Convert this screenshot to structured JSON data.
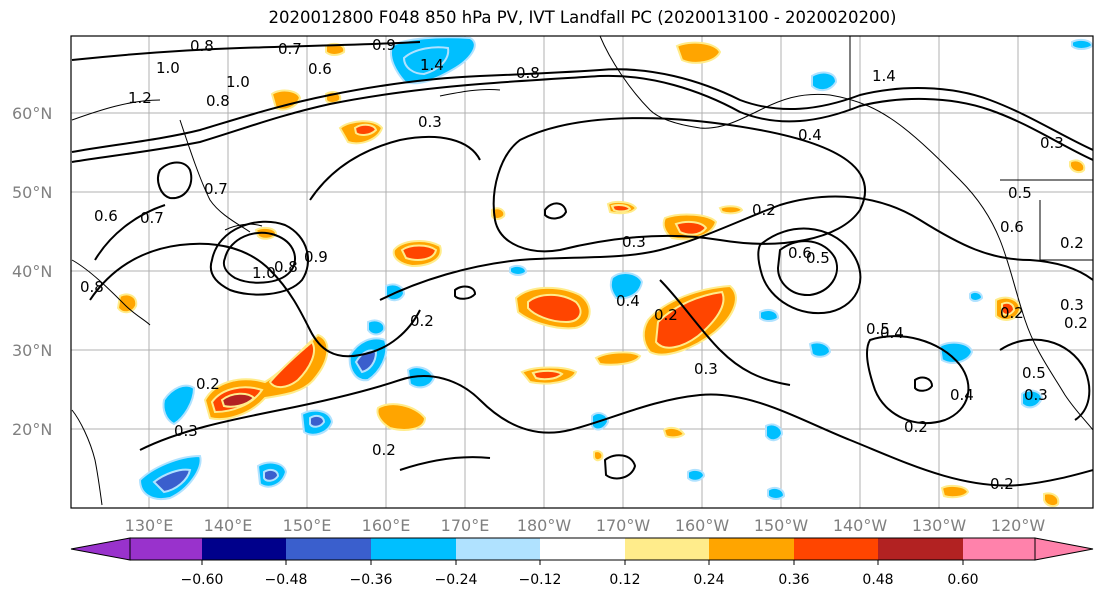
{
  "title": "2020012800 F048 850 hPa PV, IVT Landfall PC (2020013100 - 2020020200)",
  "lat_labels": [
    "60°N",
    "50°N",
    "40°N",
    "30°N",
    "20°N"
  ],
  "lon_labels": [
    "130°E",
    "140°E",
    "150°E",
    "160°E",
    "170°E",
    "180°W",
    "170°W",
    "160°W",
    "150°W",
    "140°W",
    "130°W",
    "120°W"
  ],
  "colorbar": {
    "colors": [
      "#9932cc",
      "#00008b",
      "#3a5fcd",
      "#00bfff",
      "#b0e2ff",
      "#ffffff",
      "#ffec8b",
      "#ffa500",
      "#ff4500",
      "#b22222",
      "#ff82ab"
    ],
    "tick_labels": [
      "−0.60",
      "−0.48",
      "−0.36",
      "−0.24",
      "−0.12",
      "0.12",
      "0.24",
      "0.36",
      "0.48",
      "0.60"
    ]
  },
  "contour_labels": [
    "0.8",
    "0.7",
    "0.6",
    "1.0",
    "1.2",
    "0.8",
    "0.9",
    "0.3",
    "1.0",
    "0.8",
    "1.4",
    "0.7",
    "0.6",
    "0.7",
    "0.8",
    "1.0",
    "0.8",
    "0.9",
    "0.3",
    "0.2",
    "0.2",
    "0.3",
    "0.4",
    "0.2",
    "0.2",
    "0.6",
    "0.5",
    "0.5",
    "0.4",
    "0.6",
    "0.2",
    "0.3",
    "0.2",
    "0.4",
    "0.2",
    "0.3",
    "0.5",
    "0.3",
    "0.2",
    "0.2",
    "0.3",
    "1.4",
    "0.4",
    "0.5",
    "0.2"
  ]
}
